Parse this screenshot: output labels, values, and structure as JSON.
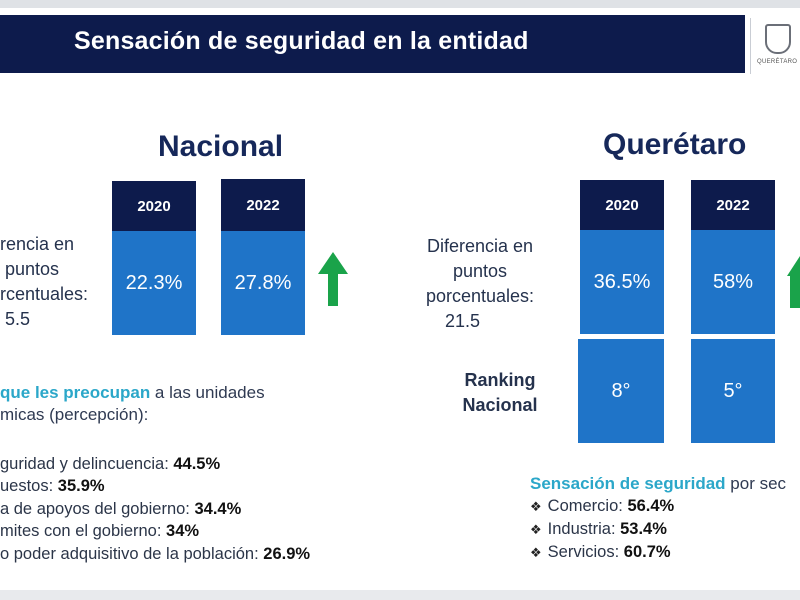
{
  "header": {
    "title": "Sensación de seguridad en la entidad",
    "logo_text": "QUERÉTARO"
  },
  "nacional": {
    "title": "Nacional",
    "years": [
      "2020",
      "2022"
    ],
    "values": [
      "22.3%",
      "27.8%"
    ],
    "difference_label": [
      "rencia en",
      "puntos",
      "rcentuales:",
      "5.5"
    ],
    "trend": "up"
  },
  "queretaro": {
    "title": "Querétaro",
    "years": [
      "2020",
      "2022"
    ],
    "values": [
      "36.5%",
      "58%"
    ],
    "difference_label": [
      "Diferencia en",
      "puntos",
      "porcentuales:",
      "21.5"
    ],
    "ranking_label": [
      "Ranking",
      "Nacional"
    ],
    "ranking_values": [
      "8°",
      "5°"
    ],
    "trend": "up"
  },
  "issues": {
    "heading_highlight": "que les preocupan",
    "heading_rest": " a las unidades",
    "heading_line2": "micas (percepción):",
    "items": [
      {
        "label": "guridad y delincuencia: ",
        "value": "44.5%"
      },
      {
        "label": "uestos: ",
        "value": "35.9%"
      },
      {
        "label": "a de apoyos del gobierno: ",
        "value": "34.4%"
      },
      {
        "label": "mites con el gobierno: ",
        "value": "34%"
      },
      {
        "label": "o poder adquisitivo de la población: ",
        "value": "26.9%"
      }
    ]
  },
  "sectors": {
    "heading_highlight": "Sensación de seguridad",
    "heading_rest": " por sec",
    "items": [
      {
        "label": "Comercio: ",
        "value": "56.4%"
      },
      {
        "label": "Industria: ",
        "value": "53.4%"
      },
      {
        "label": "Servicios: ",
        "value": "60.7%"
      }
    ]
  },
  "colors": {
    "header_bg": "#0d1b4c",
    "year_box": "#0d1b4c",
    "value_box": "#1f74c8",
    "arrow": "#1aa34a",
    "highlight": "#2ba7c9"
  }
}
